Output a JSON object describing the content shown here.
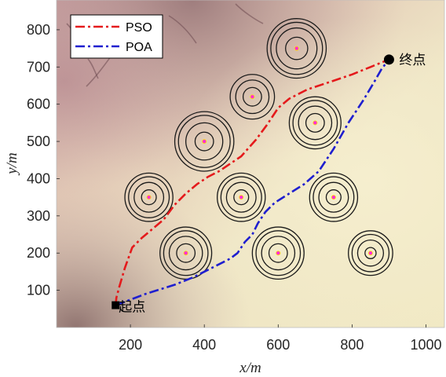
{
  "chart_data": {
    "type": "line",
    "xlabel": "x/m",
    "ylabel": "y/m",
    "xlim": [
      0,
      1050
    ],
    "ylim": [
      0,
      880
    ],
    "xticks": [
      "200",
      "400",
      "600",
      "800",
      "1000"
    ],
    "yticks": [
      "100",
      "200",
      "300",
      "400",
      "500",
      "600",
      "700",
      "800"
    ],
    "legend_position": "top-left",
    "background": "terrain-image",
    "series": [
      {
        "name": "PSO",
        "color": "#e41a1c",
        "style": "dash-dot",
        "points": [
          [
            160,
            60
          ],
          [
            162,
            80
          ],
          [
            170,
            110
          ],
          [
            185,
            160
          ],
          [
            205,
            215
          ],
          [
            230,
            240
          ],
          [
            260,
            265
          ],
          [
            290,
            290
          ],
          [
            320,
            330
          ],
          [
            350,
            360
          ],
          [
            380,
            385
          ],
          [
            410,
            405
          ],
          [
            440,
            420
          ],
          [
            470,
            440
          ],
          [
            500,
            460
          ],
          [
            540,
            505
          ],
          [
            570,
            545
          ],
          [
            600,
            590
          ],
          [
            630,
            615
          ],
          [
            680,
            640
          ],
          [
            740,
            660
          ],
          [
            800,
            680
          ],
          [
            850,
            700
          ],
          [
            900,
            720
          ]
        ]
      },
      {
        "name": "POA",
        "color": "#1f1fcf",
        "style": "dash-dot",
        "points": [
          [
            160,
            60
          ],
          [
            240,
            90
          ],
          [
            320,
            115
          ],
          [
            370,
            135
          ],
          [
            420,
            160
          ],
          [
            470,
            185
          ],
          [
            490,
            200
          ],
          [
            510,
            230
          ],
          [
            530,
            250
          ],
          [
            545,
            280
          ],
          [
            565,
            310
          ],
          [
            590,
            335
          ],
          [
            630,
            360
          ],
          [
            670,
            385
          ],
          [
            710,
            420
          ],
          [
            750,
            480
          ],
          [
            790,
            550
          ],
          [
            830,
            610
          ],
          [
            860,
            660
          ],
          [
            880,
            695
          ],
          [
            900,
            720
          ]
        ]
      }
    ],
    "obstacles": [
      {
        "x": 650,
        "y": 750,
        "radii": [
          30,
          55,
          70,
          80
        ]
      },
      {
        "x": 530,
        "y": 620,
        "radii": [
          25,
          45,
          60
        ]
      },
      {
        "x": 700,
        "y": 550,
        "radii": [
          25,
          45,
          60,
          70
        ]
      },
      {
        "x": 400,
        "y": 500,
        "radii": [
          25,
          50,
          70,
          80
        ]
      },
      {
        "x": 250,
        "y": 350,
        "radii": [
          20,
          40,
          55,
          65
        ]
      },
      {
        "x": 500,
        "y": 350,
        "radii": [
          20,
          40,
          55,
          65
        ]
      },
      {
        "x": 750,
        "y": 350,
        "radii": [
          20,
          40,
          55,
          65
        ]
      },
      {
        "x": 350,
        "y": 200,
        "radii": [
          25,
          45,
          60,
          70
        ]
      },
      {
        "x": 600,
        "y": 200,
        "radii": [
          25,
          45,
          60,
          70
        ]
      },
      {
        "x": 850,
        "y": 200,
        "radii": [
          15,
          35,
          50,
          60
        ]
      }
    ],
    "start": {
      "x": 160,
      "y": 60,
      "label": "起点"
    },
    "end": {
      "x": 900,
      "y": 720,
      "label": "终点"
    }
  }
}
